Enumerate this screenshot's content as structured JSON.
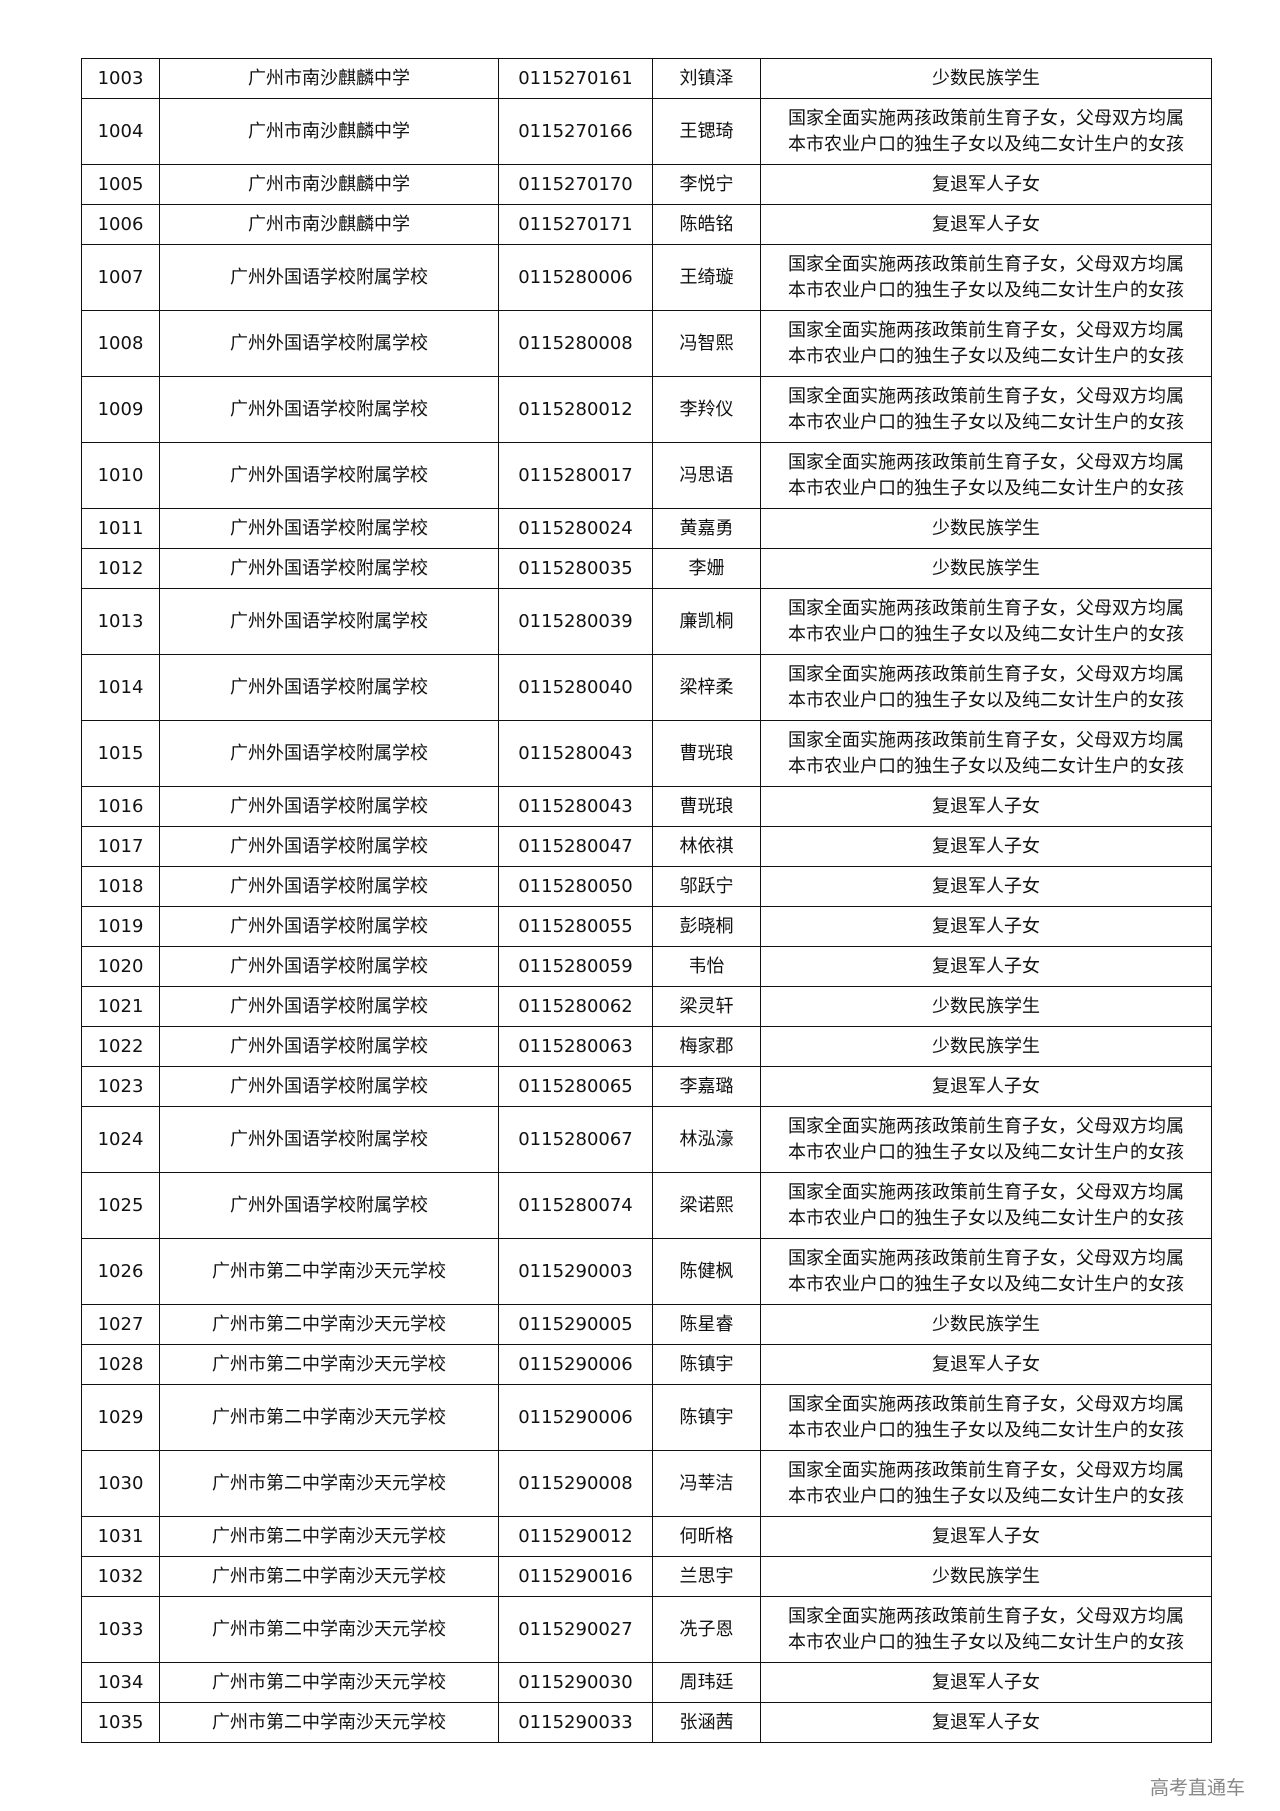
{
  "watermark": "高考直通车",
  "categories": {
    "A": "国家全面实施两孩政策前生育子女，父母双方均属\n本市农业户口的独生子女以及纯二女计生户的女孩",
    "M": "少数民族学生",
    "V": "复退军人子女"
  },
  "rows": [
    [
      "1003",
      "广州市南沙麒麟中学",
      "0115270161",
      "刘镇泽",
      "少数民族学生"
    ],
    [
      "1004",
      "广州市南沙麒麟中学",
      "0115270166",
      "王锶琦",
      "国家全面实施两孩政策前生育子女，父母双方均属\n本市农业户口的独生子女以及纯二女计生户的女孩"
    ],
    [
      "1005",
      "广州市南沙麒麟中学",
      "0115270170",
      "李悦宁",
      "复退军人子女"
    ],
    [
      "1006",
      "广州市南沙麒麟中学",
      "0115270171",
      "陈皓铭",
      "复退军人子女"
    ],
    [
      "1007",
      "广州外国语学校附属学校",
      "0115280006",
      "王绮璇",
      "国家全面实施两孩政策前生育子女，父母双方均属\n本市农业户口的独生子女以及纯二女计生户的女孩"
    ],
    [
      "1008",
      "广州外国语学校附属学校",
      "0115280008",
      "冯智熙",
      "国家全面实施两孩政策前生育子女，父母双方均属\n本市农业户口的独生子女以及纯二女计生户的女孩"
    ],
    [
      "1009",
      "广州外国语学校附属学校",
      "0115280012",
      "李羚仪",
      "国家全面实施两孩政策前生育子女，父母双方均属\n本市农业户口的独生子女以及纯二女计生户的女孩"
    ],
    [
      "1010",
      "广州外国语学校附属学校",
      "0115280017",
      "冯思语",
      "国家全面实施两孩政策前生育子女，父母双方均属\n本市农业户口的独生子女以及纯二女计生户的女孩"
    ],
    [
      "1011",
      "广州外国语学校附属学校",
      "0115280024",
      "黄嘉勇",
      "少数民族学生"
    ],
    [
      "1012",
      "广州外国语学校附属学校",
      "0115280035",
      "李姗",
      "少数民族学生"
    ],
    [
      "1013",
      "广州外国语学校附属学校",
      "0115280039",
      "廉凯桐",
      "国家全面实施两孩政策前生育子女，父母双方均属\n本市农业户口的独生子女以及纯二女计生户的女孩"
    ],
    [
      "1014",
      "广州外国语学校附属学校",
      "0115280040",
      "梁梓柔",
      "国家全面实施两孩政策前生育子女，父母双方均属\n本市农业户口的独生子女以及纯二女计生户的女孩"
    ],
    [
      "1015",
      "广州外国语学校附属学校",
      "0115280043",
      "曹珖琅",
      "国家全面实施两孩政策前生育子女，父母双方均属\n本市农业户口的独生子女以及纯二女计生户的女孩"
    ],
    [
      "1016",
      "广州外国语学校附属学校",
      "0115280043",
      "曹珖琅",
      "复退军人子女"
    ],
    [
      "1017",
      "广州外国语学校附属学校",
      "0115280047",
      "林依祺",
      "复退军人子女"
    ],
    [
      "1018",
      "广州外国语学校附属学校",
      "0115280050",
      "邬跃宁",
      "复退军人子女"
    ],
    [
      "1019",
      "广州外国语学校附属学校",
      "0115280055",
      "彭晓桐",
      "复退军人子女"
    ],
    [
      "1020",
      "广州外国语学校附属学校",
      "0115280059",
      "韦怡",
      "复退军人子女"
    ],
    [
      "1021",
      "广州外国语学校附属学校",
      "0115280062",
      "梁灵轩",
      "少数民族学生"
    ],
    [
      "1022",
      "广州外国语学校附属学校",
      "0115280063",
      "梅家郡",
      "少数民族学生"
    ],
    [
      "1023",
      "广州外国语学校附属学校",
      "0115280065",
      "李嘉璐",
      "复退军人子女"
    ],
    [
      "1024",
      "广州外国语学校附属学校",
      "0115280067",
      "林泓濠",
      "国家全面实施两孩政策前生育子女，父母双方均属\n本市农业户口的独生子女以及纯二女计生户的女孩"
    ],
    [
      "1025",
      "广州外国语学校附属学校",
      "0115280074",
      "梁诺熙",
      "国家全面实施两孩政策前生育子女，父母双方均属\n本市农业户口的独生子女以及纯二女计生户的女孩"
    ],
    [
      "1026",
      "广州市第二中学南沙天元学校",
      "0115290003",
      "陈健枫",
      "国家全面实施两孩政策前生育子女，父母双方均属\n本市农业户口的独生子女以及纯二女计生户的女孩"
    ],
    [
      "1027",
      "广州市第二中学南沙天元学校",
      "0115290005",
      "陈星睿",
      "少数民族学生"
    ],
    [
      "1028",
      "广州市第二中学南沙天元学校",
      "0115290006",
      "陈镇宇",
      "复退军人子女"
    ],
    [
      "1029",
      "广州市第二中学南沙天元学校",
      "0115290006",
      "陈镇宇",
      "国家全面实施两孩政策前生育子女，父母双方均属\n本市农业户口的独生子女以及纯二女计生户的女孩"
    ],
    [
      "1030",
      "广州市第二中学南沙天元学校",
      "0115290008",
      "冯莘洁",
      "国家全面实施两孩政策前生育子女，父母双方均属\n本市农业户口的独生子女以及纯二女计生户的女孩"
    ],
    [
      "1031",
      "广州市第二中学南沙天元学校",
      "0115290012",
      "何昕格",
      "复退军人子女"
    ],
    [
      "1032",
      "广州市第二中学南沙天元学校",
      "0115290016",
      "兰思宇",
      "少数民族学生"
    ],
    [
      "1033",
      "广州市第二中学南沙天元学校",
      "0115290027",
      "冼子恩",
      "国家全面实施两孩政策前生育子女，父母双方均属\n本市农业户口的独生子女以及纯二女计生户的女孩"
    ],
    [
      "1034",
      "广州市第二中学南沙天元学校",
      "0115290030",
      "周玮廷",
      "复退军人子女"
    ],
    [
      "1035",
      "广州市第二中学南沙天元学校",
      "0115290033",
      "张涵茜",
      "复退军人子女"
    ]
  ]
}
